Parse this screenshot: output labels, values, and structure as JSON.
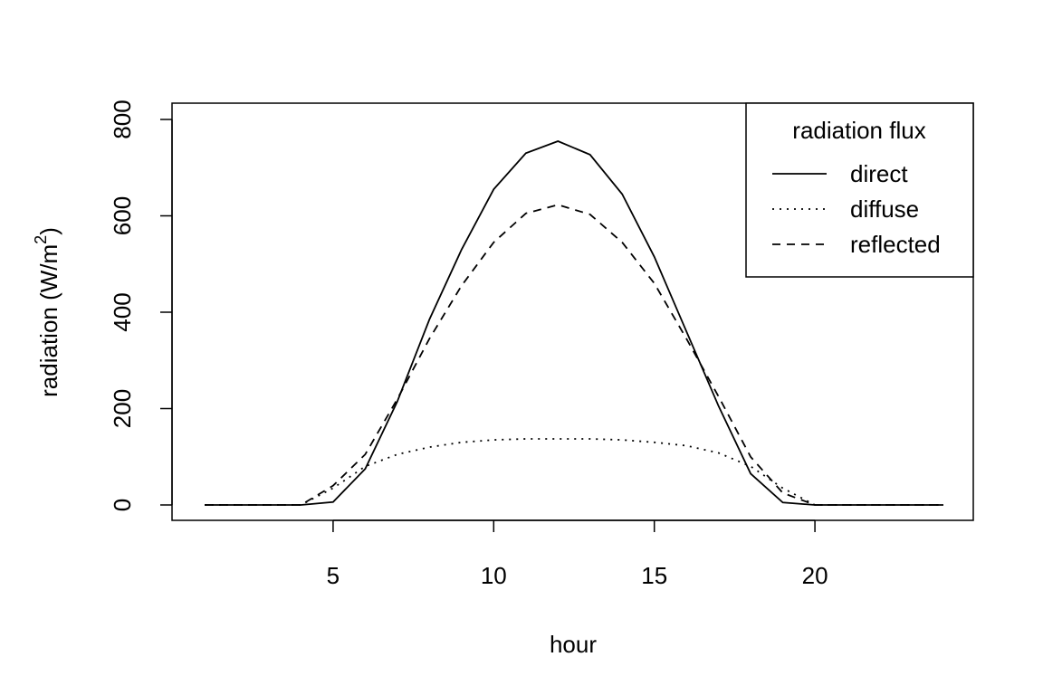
{
  "chart_data": {
    "type": "line",
    "xlabel": "hour",
    "ylabel_main": "radiation (W",
    "ylabel_sup": "2",
    "ylabel_unit_m": "m",
    "xlim": [
      1,
      24
    ],
    "ylim": [
      0,
      800
    ],
    "xticks": [
      5,
      10,
      15,
      20
    ],
    "yticks": [
      0,
      200,
      400,
      600,
      800
    ],
    "x": [
      1,
      2,
      3,
      4,
      5,
      6,
      7,
      8,
      9,
      10,
      11,
      12,
      13,
      14,
      15,
      16,
      17,
      18,
      19,
      20,
      21,
      22,
      23,
      24
    ],
    "legend": {
      "title": "radiation flux",
      "position": "top-right"
    },
    "grid": false,
    "series": [
      {
        "name": "direct",
        "line_style": "solid",
        "values": [
          0,
          0,
          0,
          0,
          6,
          75,
          215,
          385,
          530,
          655,
          730,
          755,
          727,
          645,
          515,
          360,
          205,
          65,
          5,
          0,
          0,
          0,
          0,
          0
        ]
      },
      {
        "name": "diffuse",
        "line_style": "dotted",
        "values": [
          0,
          0,
          0,
          0,
          35,
          80,
          105,
          120,
          130,
          135,
          137,
          137,
          137,
          135,
          130,
          123,
          108,
          80,
          35,
          0,
          0,
          0,
          0,
          0
        ]
      },
      {
        "name": "reflected",
        "line_style": "dashed",
        "values": [
          0,
          0,
          0,
          0,
          40,
          105,
          220,
          345,
          455,
          545,
          605,
          623,
          603,
          545,
          460,
          345,
          225,
          100,
          25,
          0,
          0,
          0,
          0,
          0
        ]
      }
    ]
  }
}
